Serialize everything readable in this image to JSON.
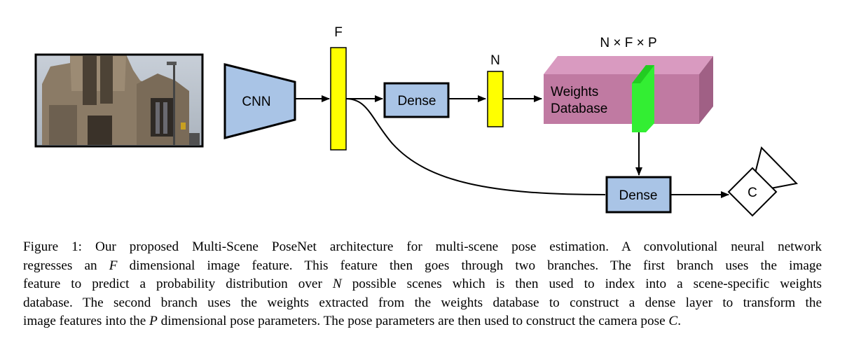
{
  "figure": {
    "cnn_label": "CNN",
    "feature_label": "F",
    "dense1_label": "Dense",
    "scene_label": "N",
    "db_dims_label": "N × F × P",
    "db_label_line1": "Weights",
    "db_label_line2": "Database",
    "dense2_label": "Dense",
    "camera_label": "C",
    "colors": {
      "cnn_fill": "#a9c4e6",
      "feature_fill": "#ffff00",
      "db_front": "#c07aa2",
      "db_top": "#d99ac0",
      "db_side": "#a06085",
      "slice_fill": "#33ee33",
      "stroke": "#000000"
    },
    "image_description_icon": "photo-of-cathedral"
  },
  "caption": {
    "prefix": "Figure 1: Our proposed Multi-Scene PoseNet architecture for multi-scene pose estimation. A convolutional neural network",
    "line2_a": "regresses an ",
    "line2_var": "F",
    "line2_b": " dimensional image feature.  This feature then goes through two branches.  The first branch uses the image",
    "line3_a": "feature to predict a probability distribution over ",
    "line3_var": "N",
    "line3_b": " possible scenes which is then used to index into a scene-specific weights",
    "line4": "database. The second branch uses the weights extracted from the weights database to construct a dense layer to transform the",
    "line5_a": "image features into the ",
    "line5_var": "P",
    "line5_b": " dimensional pose parameters. The pose parameters are then used to construct the camera pose ",
    "line5_var2": "C",
    "line5_end": "."
  }
}
